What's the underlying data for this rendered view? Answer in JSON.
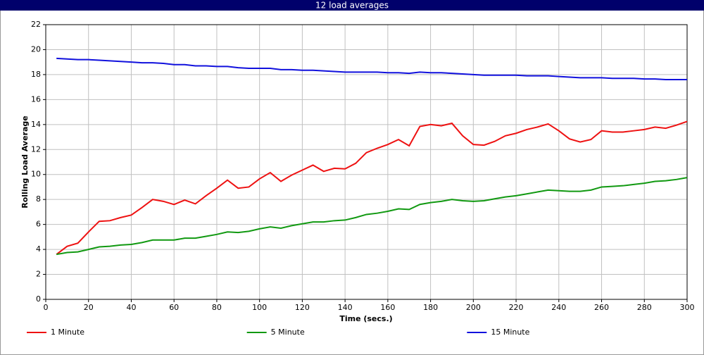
{
  "window_title": "12 load averages",
  "chart_data": {
    "type": "line",
    "x_label": "Time (secs.)",
    "y_label": "Rolling Load Average",
    "x": [
      5,
      10,
      15,
      20,
      25,
      30,
      35,
      40,
      45,
      50,
      55,
      60,
      65,
      70,
      75,
      80,
      85,
      90,
      95,
      100,
      105,
      110,
      115,
      120,
      125,
      130,
      135,
      140,
      145,
      150,
      155,
      160,
      165,
      170,
      175,
      180,
      185,
      190,
      195,
      200,
      205,
      210,
      215,
      220,
      225,
      230,
      235,
      240,
      245,
      250,
      255,
      260,
      265,
      270,
      275,
      280,
      285,
      290,
      295,
      300
    ],
    "series": [
      {
        "name": "1 Minute",
        "color": "#ee1111",
        "values": [
          3.6,
          4.25,
          4.5,
          5.4,
          6.25,
          6.3,
          6.55,
          6.75,
          7.35,
          8.0,
          7.85,
          7.6,
          7.95,
          7.65,
          8.3,
          8.9,
          9.55,
          8.9,
          9.0,
          9.65,
          10.15,
          9.45,
          9.95,
          10.35,
          10.75,
          10.25,
          10.5,
          10.45,
          10.9,
          11.75,
          12.1,
          12.4,
          12.8,
          12.3,
          13.85,
          14.0,
          13.9,
          14.1,
          13.1,
          12.4,
          12.35,
          12.65,
          13.1,
          13.3,
          13.6,
          13.8,
          14.05,
          13.5,
          12.85,
          12.6,
          12.8,
          13.5,
          13.4,
          13.4,
          13.5,
          13.6,
          13.8,
          13.7,
          13.95,
          14.25
        ]
      },
      {
        "name": "5 Minute",
        "color": "#119911",
        "values": [
          3.6,
          3.75,
          3.8,
          4.0,
          4.2,
          4.25,
          4.35,
          4.4,
          4.55,
          4.75,
          4.75,
          4.75,
          4.9,
          4.9,
          5.05,
          5.2,
          5.4,
          5.35,
          5.45,
          5.65,
          5.8,
          5.7,
          5.9,
          6.05,
          6.2,
          6.2,
          6.3,
          6.35,
          6.55,
          6.8,
          6.9,
          7.05,
          7.25,
          7.2,
          7.6,
          7.75,
          7.85,
          8.0,
          7.9,
          7.85,
          7.9,
          8.05,
          8.2,
          8.3,
          8.45,
          8.6,
          8.75,
          8.7,
          8.65,
          8.65,
          8.75,
          9.0,
          9.05,
          9.1,
          9.2,
          9.3,
          9.45,
          9.5,
          9.6,
          9.75
        ]
      },
      {
        "name": "15 Minute",
        "color": "#1111dd",
        "values": [
          19.3,
          19.25,
          19.2,
          19.2,
          19.15,
          19.1,
          19.05,
          19.0,
          18.95,
          18.95,
          18.9,
          18.8,
          18.8,
          18.7,
          18.7,
          18.65,
          18.65,
          18.55,
          18.5,
          18.5,
          18.5,
          18.4,
          18.4,
          18.35,
          18.35,
          18.3,
          18.25,
          18.2,
          18.2,
          18.2,
          18.2,
          18.15,
          18.15,
          18.1,
          18.2,
          18.15,
          18.15,
          18.1,
          18.05,
          18.0,
          17.95,
          17.95,
          17.95,
          17.95,
          17.9,
          17.9,
          17.9,
          17.85,
          17.8,
          17.75,
          17.75,
          17.75,
          17.7,
          17.7,
          17.7,
          17.65,
          17.65,
          17.6,
          17.6,
          17.6
        ]
      }
    ],
    "xlim": [
      0,
      300
    ],
    "xticks": [
      0,
      20,
      40,
      60,
      80,
      100,
      120,
      140,
      160,
      180,
      200,
      220,
      240,
      260,
      280,
      300
    ],
    "ylim": [
      0,
      22
    ],
    "yticks": [
      0,
      2,
      4,
      6,
      8,
      10,
      12,
      14,
      16,
      18,
      20,
      22
    ],
    "grid": true,
    "legend": "bottom"
  }
}
